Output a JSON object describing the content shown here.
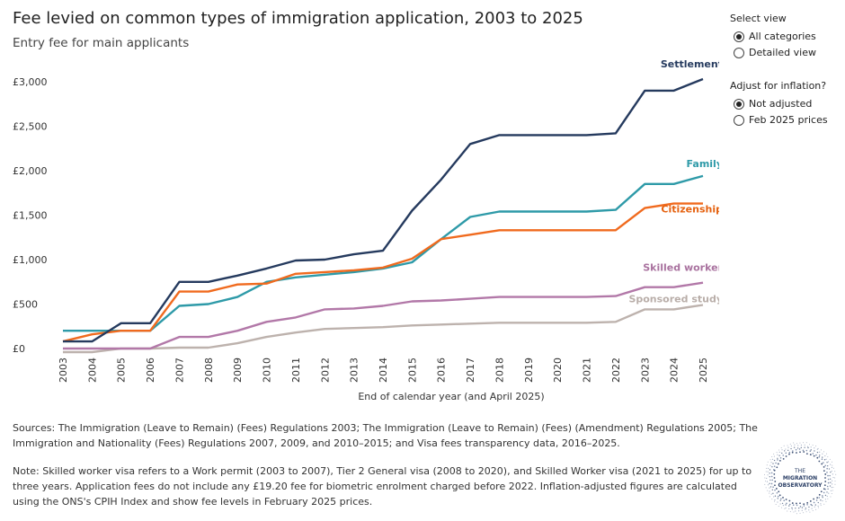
{
  "header": {
    "title": "Fee levied on common types of immigration application, 2003 to 2025",
    "subtitle": "Entry fee for main applicants"
  },
  "controls": {
    "view_heading": "Select view",
    "view_options": [
      {
        "label": "All categories",
        "checked": true
      },
      {
        "label": "Detailed view",
        "checked": false
      }
    ],
    "inflation_heading": "Adjust for inflation?",
    "inflation_options": [
      {
        "label": "Not adjusted",
        "checked": true
      },
      {
        "label": "Feb 2025 prices",
        "checked": false
      }
    ]
  },
  "footer": {
    "sources": "Sources: The Immigration (Leave to Remain) (Fees) Regulations 2003; The Immigration (Leave to Remain) (Fees) (Amendment) Regulations 2005; The Immigration and Nationality (Fees) Regulations 2007, 2009, and 2010–2015; and Visa fees transparency data, 2016–2025.",
    "note": "Note: Skilled worker visa refers to a Work permit (2003 to 2007), Tier 2 General visa (2008 to 2020), and Skilled Worker visa (2021 to 2025) for up to three years. Application fees do not include any £19.20 fee for biometric enrolment charged before 2022. Inflation-adjusted figures are calculated using the ONS's CPIH Index and show fee levels in February 2025 prices."
  },
  "logo": {
    "line1": "THE",
    "line2": "MIGRATION",
    "line3": "OBSERVATORY"
  },
  "chart_data": {
    "type": "line",
    "title": "Fee levied on common types of immigration application, 2003 to 2025",
    "subtitle": "Entry fee for main applicants",
    "xlabel": "End of calendar year (and April 2025)",
    "ylabel": "",
    "x": [
      "2003",
      "2004",
      "2005",
      "2006",
      "2007",
      "2008",
      "2009",
      "2010",
      "2011",
      "2012",
      "2013",
      "2014",
      "2015",
      "2016",
      "2017",
      "2018",
      "2019",
      "2020",
      "2021",
      "2022",
      "2023",
      "2024",
      "2025"
    ],
    "yticks": [
      0,
      500,
      1000,
      1500,
      2000,
      2500,
      3000
    ],
    "ytick_labels": [
      "£0",
      "£500",
      "£1,000",
      "£1,500",
      "£2,000",
      "£2,500",
      "£3,000"
    ],
    "ylim": [
      0,
      3100
    ],
    "grid": false,
    "legend": "direct labels at line ends",
    "series": [
      {
        "name": "Settlement",
        "color": "#253a5e",
        "label_color": "#253a5e",
        "values": [
          80,
          80,
          285,
          285,
          750,
          750,
          820,
          900,
          990,
          1000,
          1060,
          1100,
          1550,
          1900,
          2300,
          2400,
          2400,
          2400,
          2400,
          2420,
          2900,
          2900,
          3030
        ]
      },
      {
        "name": "Family",
        "color": "#2e9aa8",
        "label_color": "#2e9aa8",
        "values": [
          200,
          200,
          200,
          200,
          480,
          500,
          580,
          750,
          800,
          830,
          860,
          900,
          970,
          1230,
          1480,
          1540,
          1540,
          1540,
          1540,
          1560,
          1850,
          1850,
          1940
        ]
      },
      {
        "name": "Citizenship",
        "color": "#f06a1e",
        "label_color": "#e5610f",
        "values": [
          80,
          160,
          200,
          200,
          640,
          640,
          720,
          730,
          840,
          860,
          880,
          910,
          1010,
          1230,
          1280,
          1330,
          1330,
          1330,
          1330,
          1330,
          1580,
          1630,
          1630
        ]
      },
      {
        "name": "Skilled worker",
        "color": "#b278a8",
        "label_color": "#a9729f",
        "values": [
          0,
          0,
          0,
          0,
          130,
          130,
          200,
          300,
          350,
          440,
          450,
          480,
          530,
          540,
          560,
          580,
          580,
          580,
          580,
          590,
          690,
          690,
          740
        ]
      },
      {
        "name": "Sponsored study",
        "color": "#bdb2ad",
        "label_color": "#b9aea9",
        "values": [
          -40,
          -40,
          0,
          0,
          10,
          10,
          60,
          130,
          180,
          220,
          230,
          240,
          260,
          270,
          280,
          290,
          290,
          290,
          290,
          300,
          440,
          440,
          490
        ]
      }
    ]
  }
}
